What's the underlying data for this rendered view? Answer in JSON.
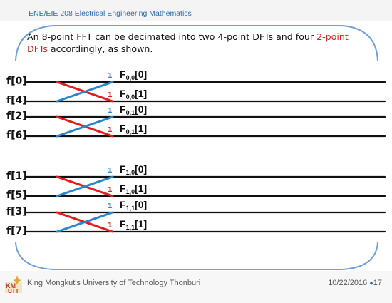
{
  "header": {
    "course": "ENE/EIE 208 Electrical Engineering Mathematics"
  },
  "intro": {
    "before": "An 8-point FFT can be decimated into two 4-point DFTs and four ",
    "highlight_a": "2-point",
    "highlight_b": "DFTs",
    "after": " accordingly, as shown."
  },
  "inputs": [
    "f[0]",
    "f[4]",
    "f[2]",
    "f[6]",
    "f[1]",
    "f[5]",
    "f[3]",
    "f[7]"
  ],
  "outputs": [
    {
      "base": "F",
      "sub": "0,0",
      "index": "[0]"
    },
    {
      "base": "F",
      "sub": "0,0",
      "index": "[1]"
    },
    {
      "base": "F",
      "sub": "0,1",
      "index": "[0]"
    },
    {
      "base": "F",
      "sub": "0,1",
      "index": "[1]"
    },
    {
      "base": "F",
      "sub": "1,0",
      "index": "[0]"
    },
    {
      "base": "F",
      "sub": "1,0",
      "index": "[1]"
    },
    {
      "base": "F",
      "sub": "1,1",
      "index": "[0]"
    },
    {
      "base": "F",
      "sub": "1,1",
      "index": "[1]"
    }
  ],
  "weights": [
    "1",
    "1",
    "1",
    "1",
    "1",
    "1",
    "1",
    "1"
  ],
  "footer": {
    "university": "King Mongkut's University of Technology Thonburi",
    "date": "10/22/2016",
    "bullet": "●",
    "page": "17"
  },
  "logo": {
    "text": "KMUTT"
  },
  "colors": {
    "header_blue": "#2b6cb5",
    "frame_blue": "#6f9fd8",
    "butterfly_red": "#e01e1e",
    "butterfly_blue": "#2a86c9"
  }
}
